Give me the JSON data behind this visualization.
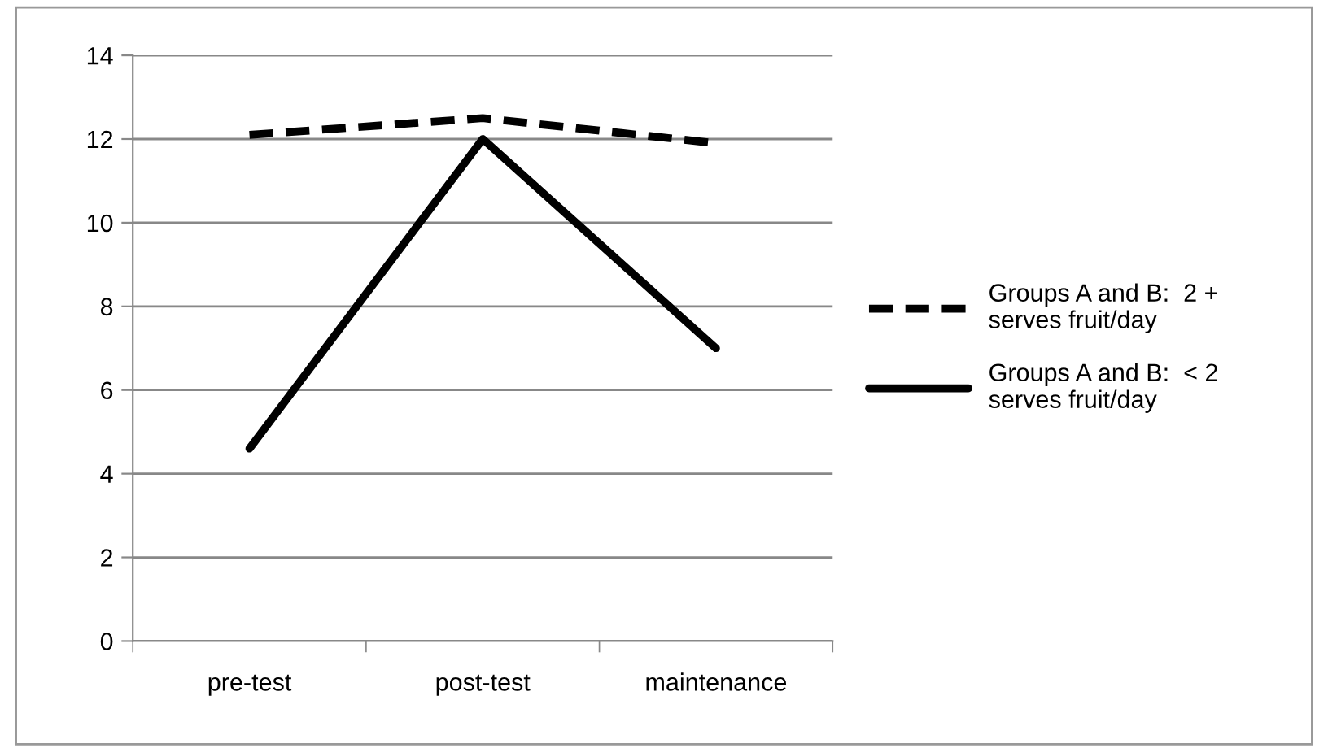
{
  "chart_data": {
    "type": "line",
    "categories": [
      "pre-test",
      "post-test",
      "maintenance"
    ],
    "series": [
      {
        "name": "Groups A and B:  2 +\nserves fruit/day",
        "color": "#000000",
        "line_style": "dashed",
        "values": [
          12.1,
          12.5,
          11.9
        ]
      },
      {
        "name": "Groups A and B:  < 2\nserves fruit/day",
        "color": "#000000",
        "line_style": "solid",
        "values": [
          4.6,
          12.0,
          7.0
        ]
      }
    ],
    "ylim": [
      0,
      14
    ],
    "yticks": [
      0,
      2,
      4,
      6,
      8,
      10,
      12,
      14
    ],
    "grid": "y",
    "legend": "right",
    "marker": "none"
  }
}
